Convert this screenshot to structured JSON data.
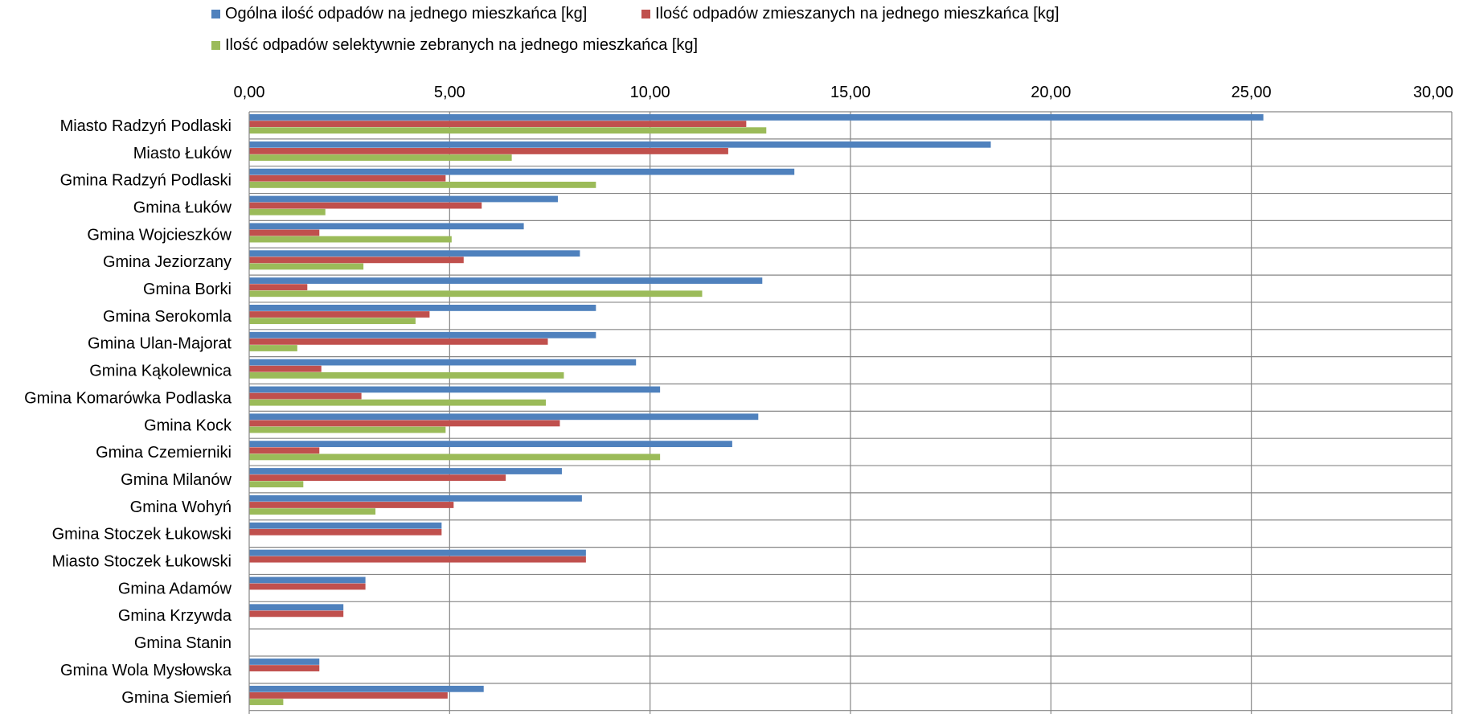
{
  "chart_data": {
    "type": "bar",
    "orientation": "horizontal",
    "categories": [
      "Miasto Radzyń Podlaski",
      "Miasto Łuków",
      "Gmina Radzyń Podlaski",
      "Gmina Łuków",
      "Gmina Wojcieszków",
      "Gmina Jeziorzany",
      "Gmina Borki",
      "Gmina Serokomla",
      "Gmina Ulan-Majorat",
      "Gmina Kąkolewnica",
      "Gmina Komarówka Podlaska",
      "Gmina Kock",
      "Gmina Czemierniki",
      "Gmina Milanów",
      "Gmina Wohyń",
      "Gmina Stoczek Łukowski ",
      "Miasto Stoczek Łukowski",
      "Gmina Adamów",
      "Gmina Krzywda",
      "Gmina Stanin",
      "Gmina Wola Mysłowska",
      "Gmina Siemień"
    ],
    "series": [
      {
        "name": "Ogólna ilość odpadów na jednego mieszkańca [kg]",
        "color": "#4F81BD",
        "values": [
          25.3,
          18.5,
          13.6,
          7.7,
          6.85,
          8.25,
          12.8,
          8.65,
          8.65,
          9.65,
          10.25,
          12.7,
          12.05,
          7.8,
          8.3,
          4.8,
          8.4,
          2.9,
          2.35,
          0,
          1.75,
          5.85
        ]
      },
      {
        "name": "Ilość odpadów zmieszanych na jednego mieszkańca [kg]",
        "color": "#C0504D",
        "values": [
          12.4,
          11.95,
          4.9,
          5.8,
          1.75,
          5.35,
          1.45,
          4.5,
          7.45,
          1.8,
          2.8,
          7.75,
          1.75,
          6.4,
          5.1,
          4.8,
          8.4,
          2.9,
          2.35,
          0,
          1.75,
          4.95
        ]
      },
      {
        "name": "Ilość odpadów selektywnie zebranych na jednego mieszkańca [kg]",
        "color": "#9BBB59",
        "values": [
          12.9,
          6.55,
          8.65,
          1.9,
          5.05,
          2.85,
          11.3,
          4.15,
          1.2,
          7.85,
          7.4,
          4.9,
          10.25,
          1.35,
          3.15,
          0,
          0,
          0,
          0,
          0,
          0,
          0.85
        ]
      }
    ],
    "x_ticks": [
      "0,00",
      "5,00",
      "10,00",
      "15,00",
      "20,00",
      "25,00",
      "30,00"
    ],
    "xlim": [
      0,
      30
    ],
    "x_axis_position": "top",
    "grid": true,
    "legend_position": "top",
    "title": "",
    "xlabel": "",
    "ylabel": ""
  }
}
